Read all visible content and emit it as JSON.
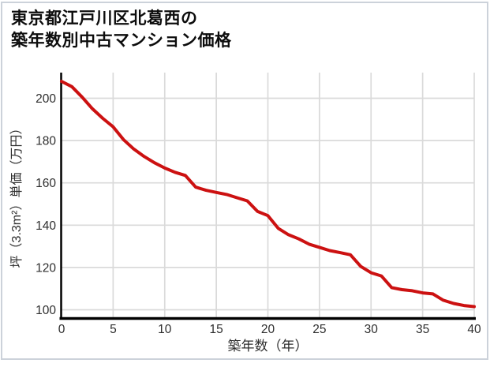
{
  "window": {
    "background_color": "#ffffff",
    "border_color": "#ccd2da"
  },
  "title": {
    "line1": "東京都江戸川区北葛西の",
    "line2": "築年数別中古マンション価格"
  },
  "chart_data": {
    "type": "line",
    "title": "東京都江戸川区北葛西の築年数別中古マンション価格",
    "xlabel": "築年数（年）",
    "ylabel": "坪（3.3m²）単価（万円）",
    "x": [
      0,
      1,
      2,
      3,
      4,
      5,
      6,
      7,
      8,
      9,
      10,
      11,
      12,
      13,
      14,
      15,
      16,
      17,
      18,
      19,
      20,
      21,
      22,
      23,
      24,
      25,
      26,
      27,
      28,
      29,
      30,
      31,
      32,
      33,
      34,
      35,
      36,
      37,
      38,
      39,
      40
    ],
    "values": [
      208,
      205.5,
      200.5,
      195,
      190.5,
      186.5,
      180.5,
      176,
      172.5,
      169.5,
      167,
      165,
      163.5,
      158,
      156.5,
      155.5,
      154.5,
      153,
      151.5,
      146.5,
      144.5,
      138.5,
      135.5,
      133.5,
      131,
      129.5,
      128,
      127,
      126,
      120.5,
      117.5,
      116,
      110.5,
      109.5,
      109,
      108,
      107.5,
      104.5,
      103,
      102,
      101.5
    ],
    "xticks": [
      0,
      5,
      10,
      15,
      20,
      25,
      30,
      35,
      40
    ],
    "yticks": [
      100,
      120,
      140,
      160,
      180,
      200
    ],
    "xlim": [
      0,
      40
    ],
    "ylim": [
      96,
      212
    ],
    "grid": true,
    "legend": false,
    "line_color": "#cc1111",
    "grid_color": "#dadada",
    "axis_color": "#000000",
    "tick_label_color": "#2e2e2e"
  }
}
